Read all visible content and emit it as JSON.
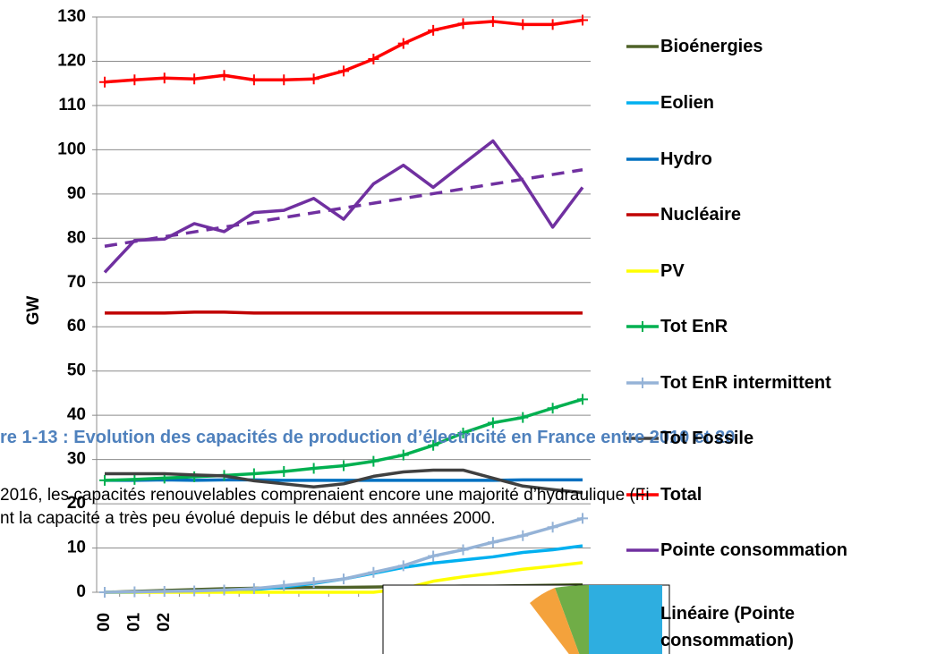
{
  "chart_data": {
    "type": "line",
    "y_label": "GW",
    "categories": [
      "00",
      "01",
      "02",
      null,
      null,
      null,
      null,
      null,
      null,
      null,
      null,
      null,
      null,
      null,
      null,
      null,
      null
    ],
    "ylim": [
      0,
      130
    ],
    "yticks": [
      0,
      10,
      20,
      30,
      40,
      50,
      60,
      70,
      80,
      90,
      100,
      110,
      120,
      130
    ],
    "grid": true,
    "legend": "right",
    "series": [
      {
        "name": "Bioénergies",
        "color": "#4f6228",
        "values": [
          0,
          0.2,
          0.4,
          0.6,
          0.8,
          0.9,
          1,
          1.1,
          1.1,
          1.2,
          1.3,
          1.3,
          1.4,
          1.4,
          1.5,
          1.6,
          1.7
        ]
      },
      {
        "name": "Eolien",
        "color": "#00b0f0",
        "values": [
          0,
          0,
          0.1,
          0.2,
          0.3,
          0.6,
          1.2,
          2,
          3,
          4.3,
          5.6,
          6.6,
          7.3,
          8,
          9,
          9.6,
          10.5
        ]
      },
      {
        "name": "Hydro",
        "color": "#0070c0",
        "values": [
          25.3,
          25.3,
          25.4,
          25.3,
          25.4,
          25.4,
          25.3,
          25.3,
          25.3,
          25.3,
          25.3,
          25.3,
          25.3,
          25.3,
          25.4,
          25.4,
          25.4
        ]
      },
      {
        "name": "Nucléaire",
        "color": "#c00000",
        "values": [
          63.1,
          63.1,
          63.1,
          63.3,
          63.3,
          63.1,
          63.1,
          63.1,
          63.1,
          63.1,
          63.1,
          63.1,
          63.1,
          63.1,
          63.1,
          63.1,
          63.1
        ]
      },
      {
        "name": "PV",
        "color": "#ffff00",
        "values": [
          0,
          0,
          0,
          0,
          0,
          0,
          0,
          0,
          0,
          0,
          0.8,
          2.5,
          3.5,
          4.3,
          5.2,
          5.9,
          6.7
        ]
      },
      {
        "name": "Tot EnR",
        "color": "#00b050",
        "marker": "plus",
        "values": [
          25.3,
          25.5,
          25.8,
          26.1,
          26.4,
          26.8,
          27.3,
          28,
          28.6,
          29.6,
          31,
          33.2,
          36,
          38.3,
          39.5,
          41.6,
          43.6
        ]
      },
      {
        "name": "Tot EnR intermittent",
        "color": "#95b3d7",
        "marker": "plus",
        "values": [
          0,
          0.1,
          0.2,
          0.3,
          0.5,
          0.8,
          1.5,
          2.2,
          3,
          4.5,
          6,
          8.2,
          9.6,
          11.3,
          12.8,
          14.7,
          16.7
        ]
      },
      {
        "name": "Tot Fossile",
        "color": "#404040",
        "values": [
          26.8,
          26.8,
          26.8,
          26.5,
          26.3,
          25.2,
          24.5,
          23.8,
          24.5,
          26.2,
          27.2,
          27.6,
          27.6,
          25.8,
          24,
          23.2,
          22.5
        ]
      },
      {
        "name": "Total",
        "color": "#ff0000",
        "marker": "plus",
        "values": [
          115.3,
          115.8,
          116.2,
          116,
          116.8,
          115.8,
          115.8,
          116,
          117.8,
          120.5,
          124,
          127,
          128.5,
          129,
          128.3,
          128.3,
          129.3
        ]
      },
      {
        "name": "Pointe consommation",
        "color": "#7030a0",
        "values": [
          72.3,
          79.5,
          79.8,
          83.3,
          81.5,
          85.8,
          86.3,
          89,
          84.3,
          92.3,
          96.5,
          91.5,
          96.8,
          102,
          93,
          82.5,
          91.5
        ]
      },
      {
        "name": "Linéaire (Pointe consommation)",
        "color": "#7030a0",
        "dash": true,
        "values": [
          78.2,
          79.28,
          80.36,
          81.44,
          82.52,
          83.6,
          84.68,
          85.76,
          86.84,
          87.92,
          89,
          90.08,
          91.16,
          92.24,
          93.32,
          94.4,
          95.48
        ]
      }
    ]
  },
  "document": {
    "caption": "re 1-13 : Evolution des capacités de production d’électricité en France entre 2010 et 20",
    "paragraph_lines": [
      "2016, les capacités renouvelables comprenaient encore une majorité d’hydraulique (Fi",
      "nt la capacité a très peu évolué depuis le début des années 2000."
    ]
  }
}
